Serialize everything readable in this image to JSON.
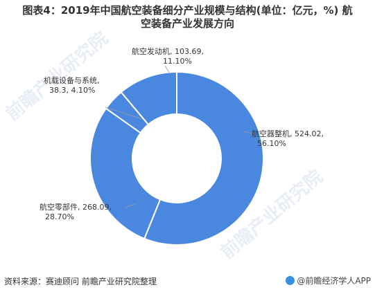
{
  "title_line1": "图表4：2019年中国航空装备细分产业规模与结构(单位：亿元，%) 航",
  "title_line2": "空装备产业发展方向",
  "source": "资料来源：赛迪顾问 前瞻产业研究院整理",
  "brand": "@前瞻经济学人APP",
  "watermark": "前瞻产业研究院",
  "chart_data": {
    "type": "pie",
    "donut": true,
    "colors": {
      "fill": "#4a88e0",
      "stroke": "#ffffff"
    },
    "slices": [
      {
        "name": "航空器整机",
        "value": 524.02,
        "percent": "56.10%",
        "label_line1": "航空器整机, 524.02,",
        "label_line2": "56.10%"
      },
      {
        "name": "航空零部件",
        "value": 268.09,
        "percent": "28.70%",
        "label_line1": "航空零部件, 268.09,",
        "label_line2": "28.70%"
      },
      {
        "name": "机载设备与系统",
        "value": 38.3,
        "percent": "4.10%",
        "label_line1": "机载设备与系统,",
        "label_line2": "38.3, 4.10%"
      },
      {
        "name": "航空发动机",
        "value": 103.69,
        "percent": "11.10%",
        "label_line1": "航空发动机, 103.69,",
        "label_line2": "11.10%"
      }
    ]
  }
}
